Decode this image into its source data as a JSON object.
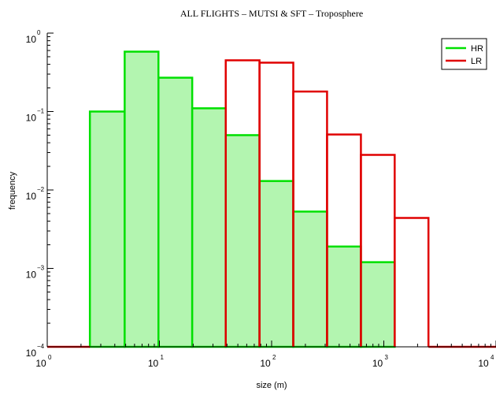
{
  "chart_data": {
    "type": "bar",
    "title": "ALL FLIGHTS –  MUTSI & SFT – Troposphere",
    "xlabel": "size (m)",
    "ylabel": "frequency",
    "x_scale": "log",
    "y_scale": "log",
    "xlim": [
      1,
      10000
    ],
    "ylim": [
      0.0001,
      1
    ],
    "x_ticks": [
      {
        "base": "10",
        "exp": "0"
      },
      {
        "base": "10",
        "exp": "1"
      },
      {
        "base": "10",
        "exp": "2"
      },
      {
        "base": "10",
        "exp": "3"
      },
      {
        "base": "10",
        "exp": "4"
      }
    ],
    "y_ticks": [
      {
        "base": "10",
        "exp": "0"
      },
      {
        "base": "10",
        "exp": "−1"
      },
      {
        "base": "10",
        "exp": "−2"
      },
      {
        "base": "10",
        "exp": "−3"
      },
      {
        "base": "10",
        "exp": "−4"
      }
    ],
    "legend_position": "top-right",
    "series": [
      {
        "name": "HR",
        "color": "#00e000",
        "fill": "#b3f5b0",
        "bins": [
          {
            "x0": 2.4,
            "x1": 4.9,
            "value": 0.1
          },
          {
            "x0": 4.9,
            "x1": 9.8,
            "value": 0.58
          },
          {
            "x0": 9.8,
            "x1": 19.6,
            "value": 0.27
          },
          {
            "x0": 19.6,
            "x1": 39,
            "value": 0.11
          },
          {
            "x0": 39,
            "x1": 78,
            "value": 0.05
          },
          {
            "x0": 78,
            "x1": 156,
            "value": 0.013
          },
          {
            "x0": 156,
            "x1": 312,
            "value": 0.0053
          },
          {
            "x0": 312,
            "x1": 625,
            "value": 0.0019
          },
          {
            "x0": 625,
            "x1": 1250,
            "value": 0.0012
          }
        ]
      },
      {
        "name": "LR",
        "color": "#e00000",
        "bins": [
          {
            "x0": 39,
            "x1": 78,
            "value": 0.45
          },
          {
            "x0": 78,
            "x1": 156,
            "value": 0.42
          },
          {
            "x0": 156,
            "x1": 312,
            "value": 0.18
          },
          {
            "x0": 312,
            "x1": 625,
            "value": 0.051
          },
          {
            "x0": 625,
            "x1": 1250,
            "value": 0.028
          },
          {
            "x0": 1250,
            "x1": 2500,
            "value": 0.0044
          }
        ]
      }
    ]
  }
}
